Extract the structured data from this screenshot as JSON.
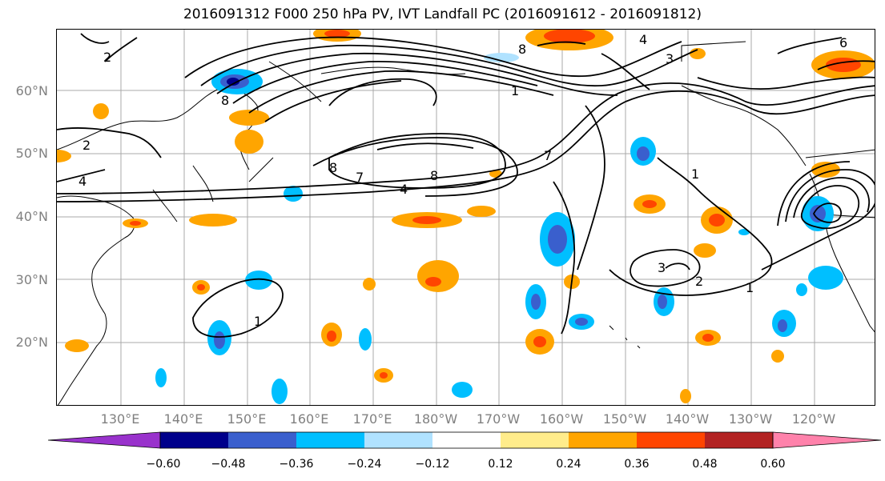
{
  "title": "2016091312 F000 250 hPa PV, IVT Landfall PC (2016091612 - 2016091812)",
  "map": {
    "lat_labels": [
      "60°N",
      "50°N",
      "40°N",
      "30°N",
      "20°N"
    ],
    "lon_labels": [
      "130°E",
      "140°E",
      "150°E",
      "160°E",
      "170°E",
      "180°W",
      "170°W",
      "160°W",
      "150°W",
      "140°W",
      "130°W",
      "120°W"
    ],
    "contour_labels": [
      "2",
      "4",
      "2",
      "8",
      "8",
      "7",
      "4",
      "8",
      "7",
      "1",
      "1",
      "2",
      "3",
      "1",
      "1",
      "8",
      "6",
      "4",
      "3"
    ]
  },
  "colorbar": {
    "tick_labels": [
      "−0.60",
      "−0.48",
      "−0.36",
      "−0.24",
      "−0.12",
      "0.12",
      "0.24",
      "0.36",
      "0.48",
      "0.60"
    ],
    "colors": [
      "#9932cc",
      "#00008b",
      "#3a5fcd",
      "#00bfff",
      "#b0e2ff",
      "#ffffff",
      "#ffec8b",
      "#ffa500",
      "#ff4500",
      "#b22222",
      "#ff82ab"
    ]
  }
}
